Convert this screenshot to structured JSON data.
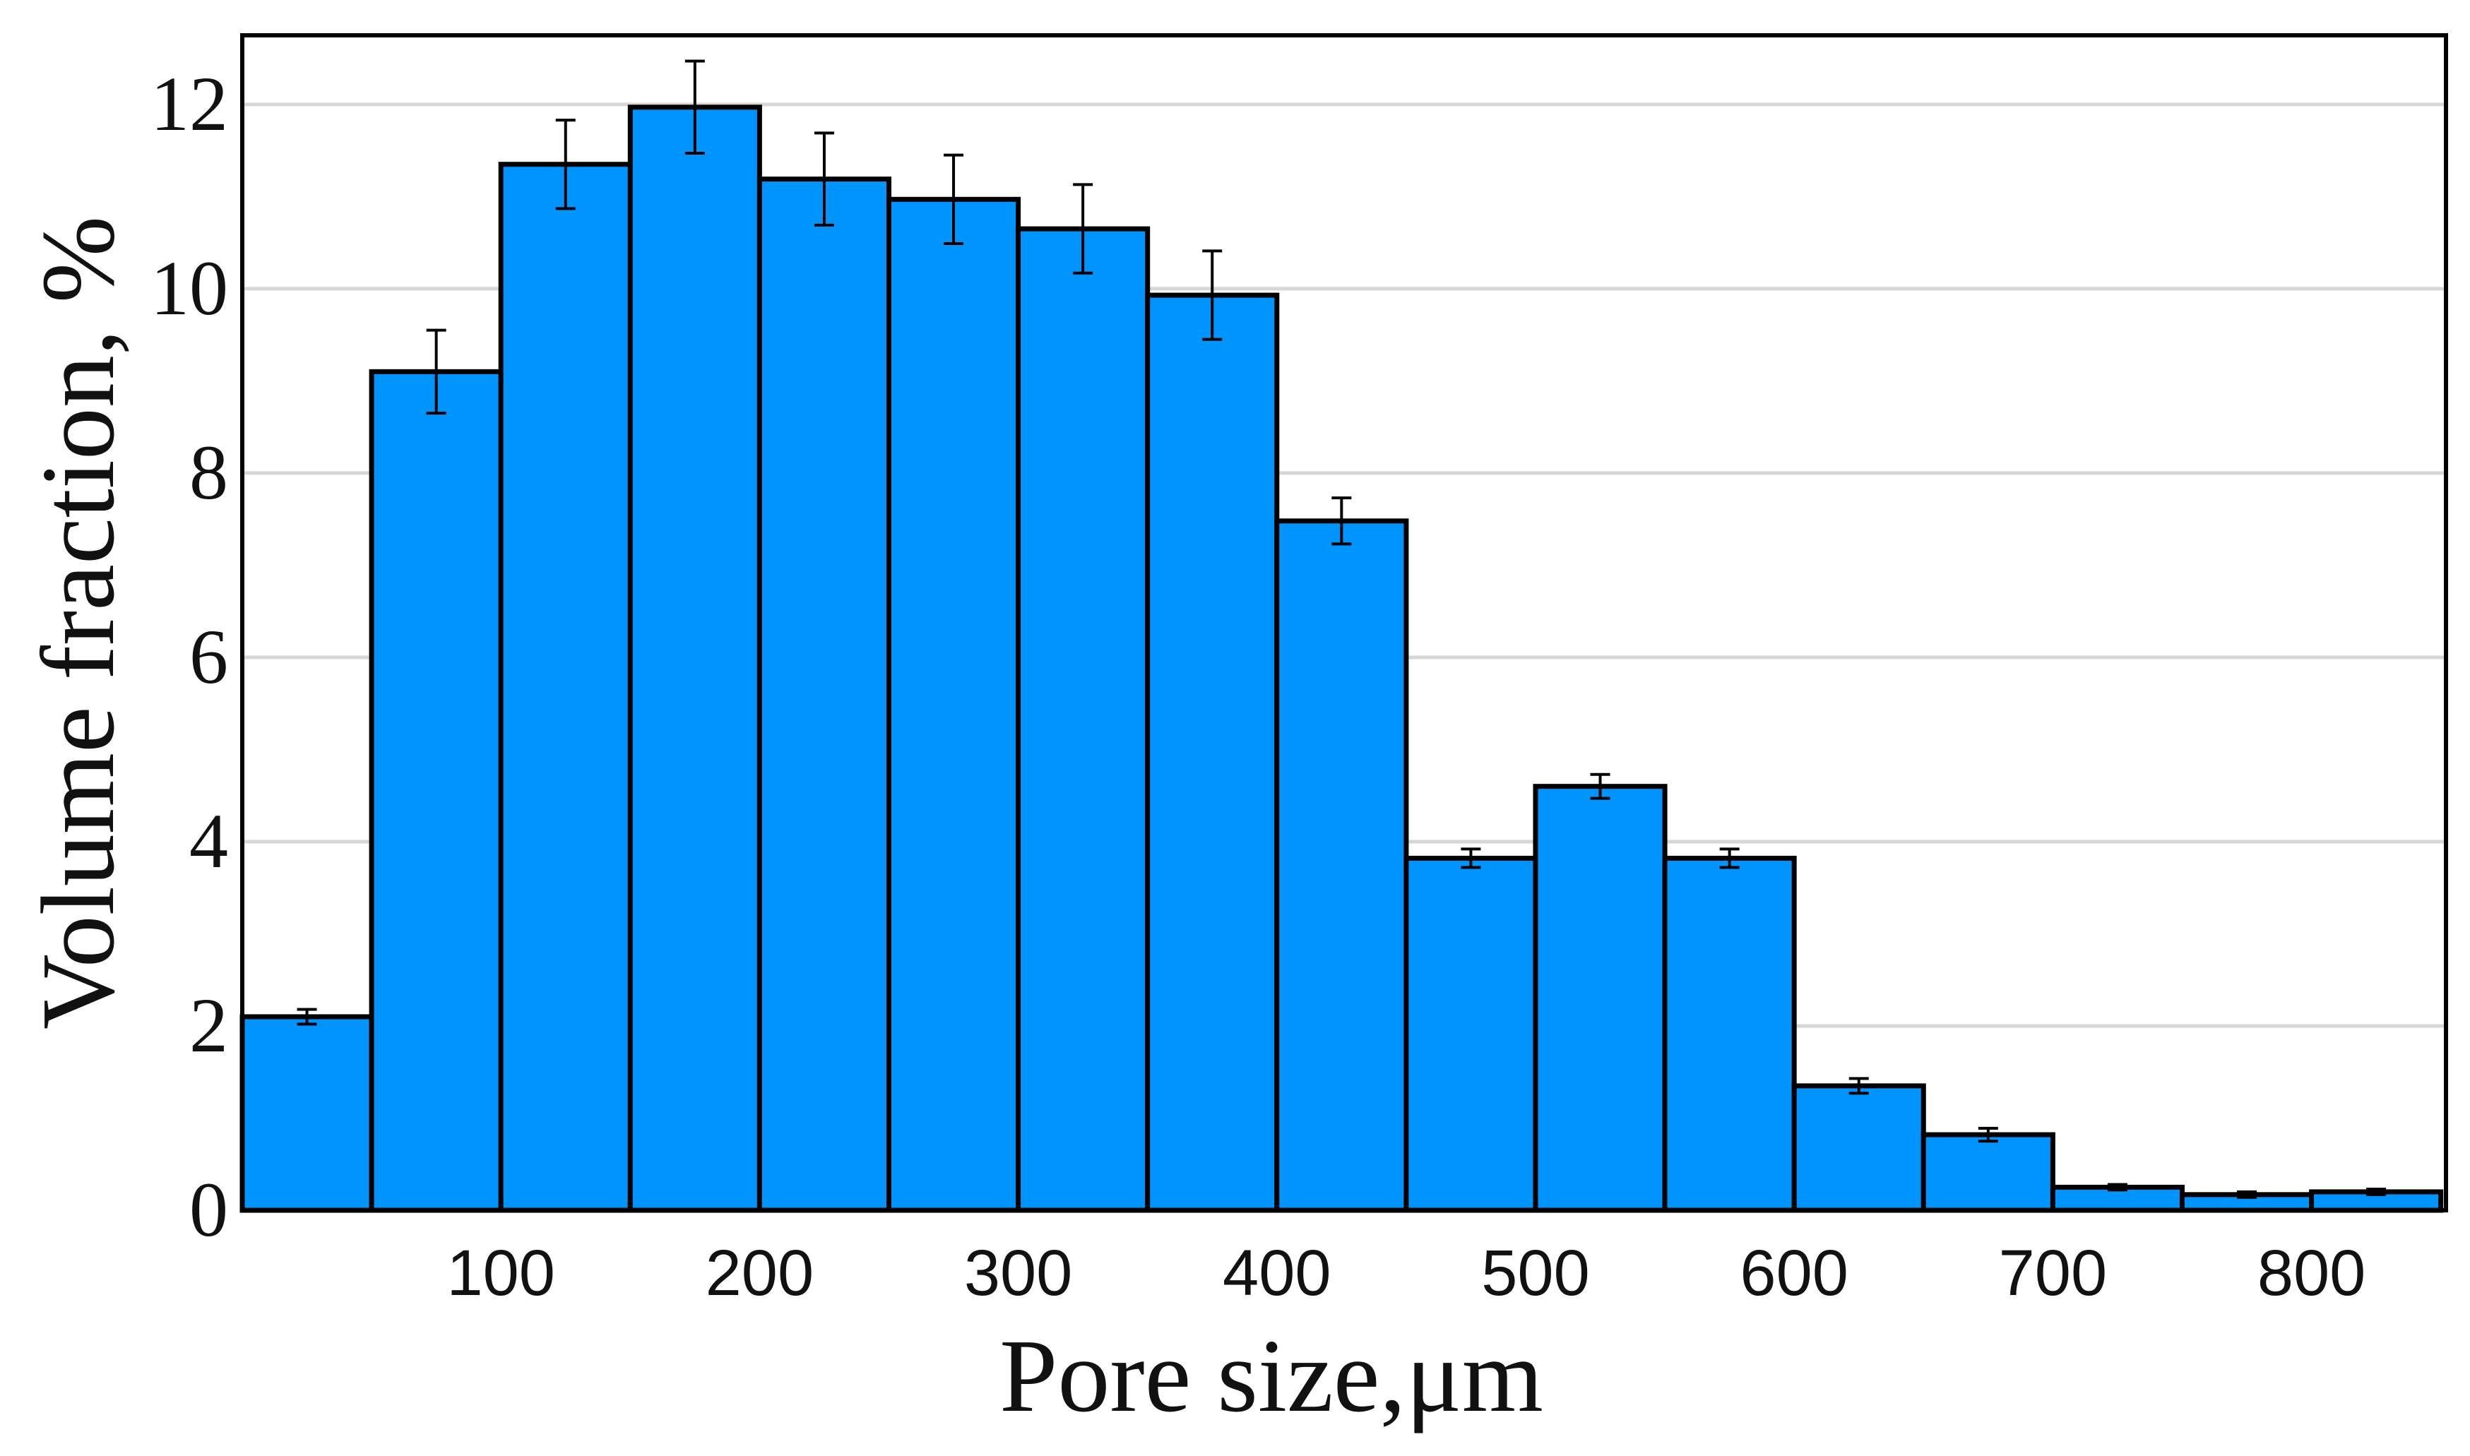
{
  "chart_data": {
    "type": "bar",
    "title": "",
    "xlabel": "Pore size,μm",
    "ylabel": "Volume fraction, %",
    "bin_width": 50,
    "bin_starts": [
      0,
      50,
      100,
      150,
      200,
      250,
      300,
      350,
      400,
      450,
      500,
      550,
      600,
      650,
      700,
      750,
      800
    ],
    "values": [
      2.1,
      9.1,
      11.35,
      11.97,
      11.19,
      10.97,
      10.65,
      9.93,
      7.48,
      3.82,
      4.6,
      3.82,
      1.35,
      0.82,
      0.25,
      0.17,
      0.2
    ],
    "errors": [
      0.08,
      0.45,
      0.48,
      0.5,
      0.5,
      0.48,
      0.48,
      0.48,
      0.25,
      0.1,
      0.13,
      0.1,
      0.08,
      0.07,
      0.03,
      0.03,
      0.03
    ],
    "xlim": [
      0,
      852
    ],
    "ylim": [
      0,
      12.75
    ],
    "xticks": [
      100,
      200,
      300,
      400,
      500,
      600,
      700,
      800
    ],
    "xtick_labels": [
      "100",
      "200",
      "300",
      "400",
      "500",
      "600",
      "700",
      "800"
    ],
    "yticks": [
      0,
      2,
      4,
      6,
      8,
      10,
      12
    ],
    "ytick_labels": [
      "0",
      "2",
      "4",
      "6",
      "8",
      "10",
      "12"
    ],
    "grid": "horizontal",
    "colors": {
      "bar_fill": "#0094FF",
      "bar_edge": "#000000",
      "grid": "#d6d6d6",
      "frame": "#000000"
    }
  }
}
